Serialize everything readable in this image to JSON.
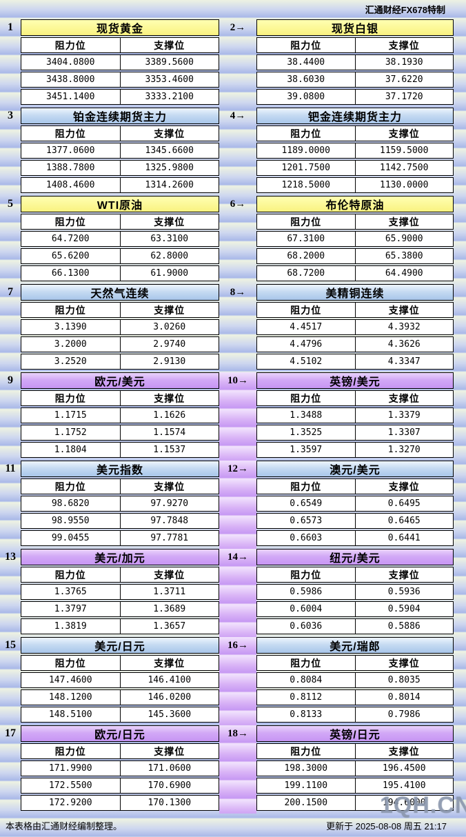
{
  "page": {
    "brand": "汇通财经FX678特制",
    "footer_left": "本表格由汇通财经编制整理。",
    "footer_right": "更新于 2025-08-08 周五 21:17",
    "watermark": "1QH.CN"
  },
  "chart_data": {
    "type": "table",
    "title": "汇通财经FX678特制",
    "updated": "2025-08-08 周五 21:17",
    "columns": [
      "阻力位",
      "支撑位"
    ],
    "instruments": [
      {
        "label": "1",
        "title": "现货黄金",
        "theme": "yellow",
        "rows": [
          [
            "3404.0800",
            "3389.5600"
          ],
          [
            "3438.8000",
            "3353.4600"
          ],
          [
            "3451.1400",
            "3333.2100"
          ]
        ]
      },
      {
        "label": "2→",
        "title": "现货白银",
        "theme": "yellow",
        "rows": [
          [
            "38.4400",
            "38.1930"
          ],
          [
            "38.6030",
            "37.6220"
          ],
          [
            "39.0800",
            "37.1720"
          ]
        ]
      },
      {
        "label": "3",
        "title": "铂金连续期货主力",
        "theme": "blue",
        "rows": [
          [
            "1377.0600",
            "1345.6600"
          ],
          [
            "1388.7800",
            "1325.9800"
          ],
          [
            "1408.4600",
            "1314.2600"
          ]
        ]
      },
      {
        "label": "4→",
        "title": "钯金连续期货主力",
        "theme": "blue",
        "rows": [
          [
            "1189.0000",
            "1159.5000"
          ],
          [
            "1201.7500",
            "1142.7500"
          ],
          [
            "1218.5000",
            "1130.0000"
          ]
        ]
      },
      {
        "label": "5",
        "title": "WTI原油",
        "theme": "yellow",
        "rows": [
          [
            "64.7200",
            "63.3100"
          ],
          [
            "65.6200",
            "62.8000"
          ],
          [
            "66.1300",
            "61.9000"
          ]
        ]
      },
      {
        "label": "6→",
        "title": "布伦特原油",
        "theme": "yellow",
        "rows": [
          [
            "67.3100",
            "65.9000"
          ],
          [
            "68.2000",
            "65.3800"
          ],
          [
            "68.7200",
            "64.4900"
          ]
        ]
      },
      {
        "label": "7",
        "title": "天然气连续",
        "theme": "blue",
        "rows": [
          [
            "3.1390",
            "3.0260"
          ],
          [
            "3.2000",
            "2.9740"
          ],
          [
            "3.2520",
            "2.9130"
          ]
        ]
      },
      {
        "label": "8→",
        "title": "美精铜连续",
        "theme": "blue",
        "rows": [
          [
            "4.4517",
            "4.3932"
          ],
          [
            "4.4796",
            "4.3626"
          ],
          [
            "4.5102",
            "4.3347"
          ]
        ]
      },
      {
        "label": "9",
        "title": "欧元/美元",
        "theme": "purple",
        "rows": [
          [
            "1.1715",
            "1.1626"
          ],
          [
            "1.1752",
            "1.1574"
          ],
          [
            "1.1804",
            "1.1537"
          ]
        ]
      },
      {
        "label": "10→",
        "title": "英镑/美元",
        "theme": "purple",
        "rows": [
          [
            "1.3488",
            "1.3379"
          ],
          [
            "1.3525",
            "1.3307"
          ],
          [
            "1.3597",
            "1.3270"
          ]
        ]
      },
      {
        "label": "11",
        "title": "美元指数",
        "theme": "blue",
        "rows": [
          [
            "98.6820",
            "97.9270"
          ],
          [
            "98.9550",
            "97.7848"
          ],
          [
            "99.0455",
            "97.7781"
          ]
        ]
      },
      {
        "label": "12→",
        "title": "澳元/美元",
        "theme": "blue",
        "rows": [
          [
            "0.6549",
            "0.6495"
          ],
          [
            "0.6573",
            "0.6465"
          ],
          [
            "0.6603",
            "0.6441"
          ]
        ]
      },
      {
        "label": "13",
        "title": "美元/加元",
        "theme": "purple",
        "rows": [
          [
            "1.3765",
            "1.3711"
          ],
          [
            "1.3797",
            "1.3689"
          ],
          [
            "1.3819",
            "1.3657"
          ]
        ]
      },
      {
        "label": "14→",
        "title": "纽元/美元",
        "theme": "purple",
        "rows": [
          [
            "0.5986",
            "0.5936"
          ],
          [
            "0.6004",
            "0.5904"
          ],
          [
            "0.6036",
            "0.5886"
          ]
        ]
      },
      {
        "label": "15",
        "title": "美元/日元",
        "theme": "blue",
        "rows": [
          [
            "147.4600",
            "146.4100"
          ],
          [
            "148.1200",
            "146.0200"
          ],
          [
            "148.5100",
            "145.3600"
          ]
        ]
      },
      {
        "label": "16→",
        "title": "美元/瑞郎",
        "theme": "blue",
        "rows": [
          [
            "0.8084",
            "0.8035"
          ],
          [
            "0.8112",
            "0.8014"
          ],
          [
            "0.8133",
            "0.7986"
          ]
        ]
      },
      {
        "label": "17",
        "title": "欧元/日元",
        "theme": "purple",
        "rows": [
          [
            "171.9900",
            "171.0600"
          ],
          [
            "172.5500",
            "170.6900"
          ],
          [
            "172.9200",
            "170.1300"
          ]
        ]
      },
      {
        "label": "18→",
        "title": "英镑/日元",
        "theme": "purple",
        "rows": [
          [
            "198.3000",
            "196.4500"
          ],
          [
            "199.1100",
            "195.4100"
          ],
          [
            "200.1500",
            "194.6000"
          ]
        ]
      }
    ]
  }
}
